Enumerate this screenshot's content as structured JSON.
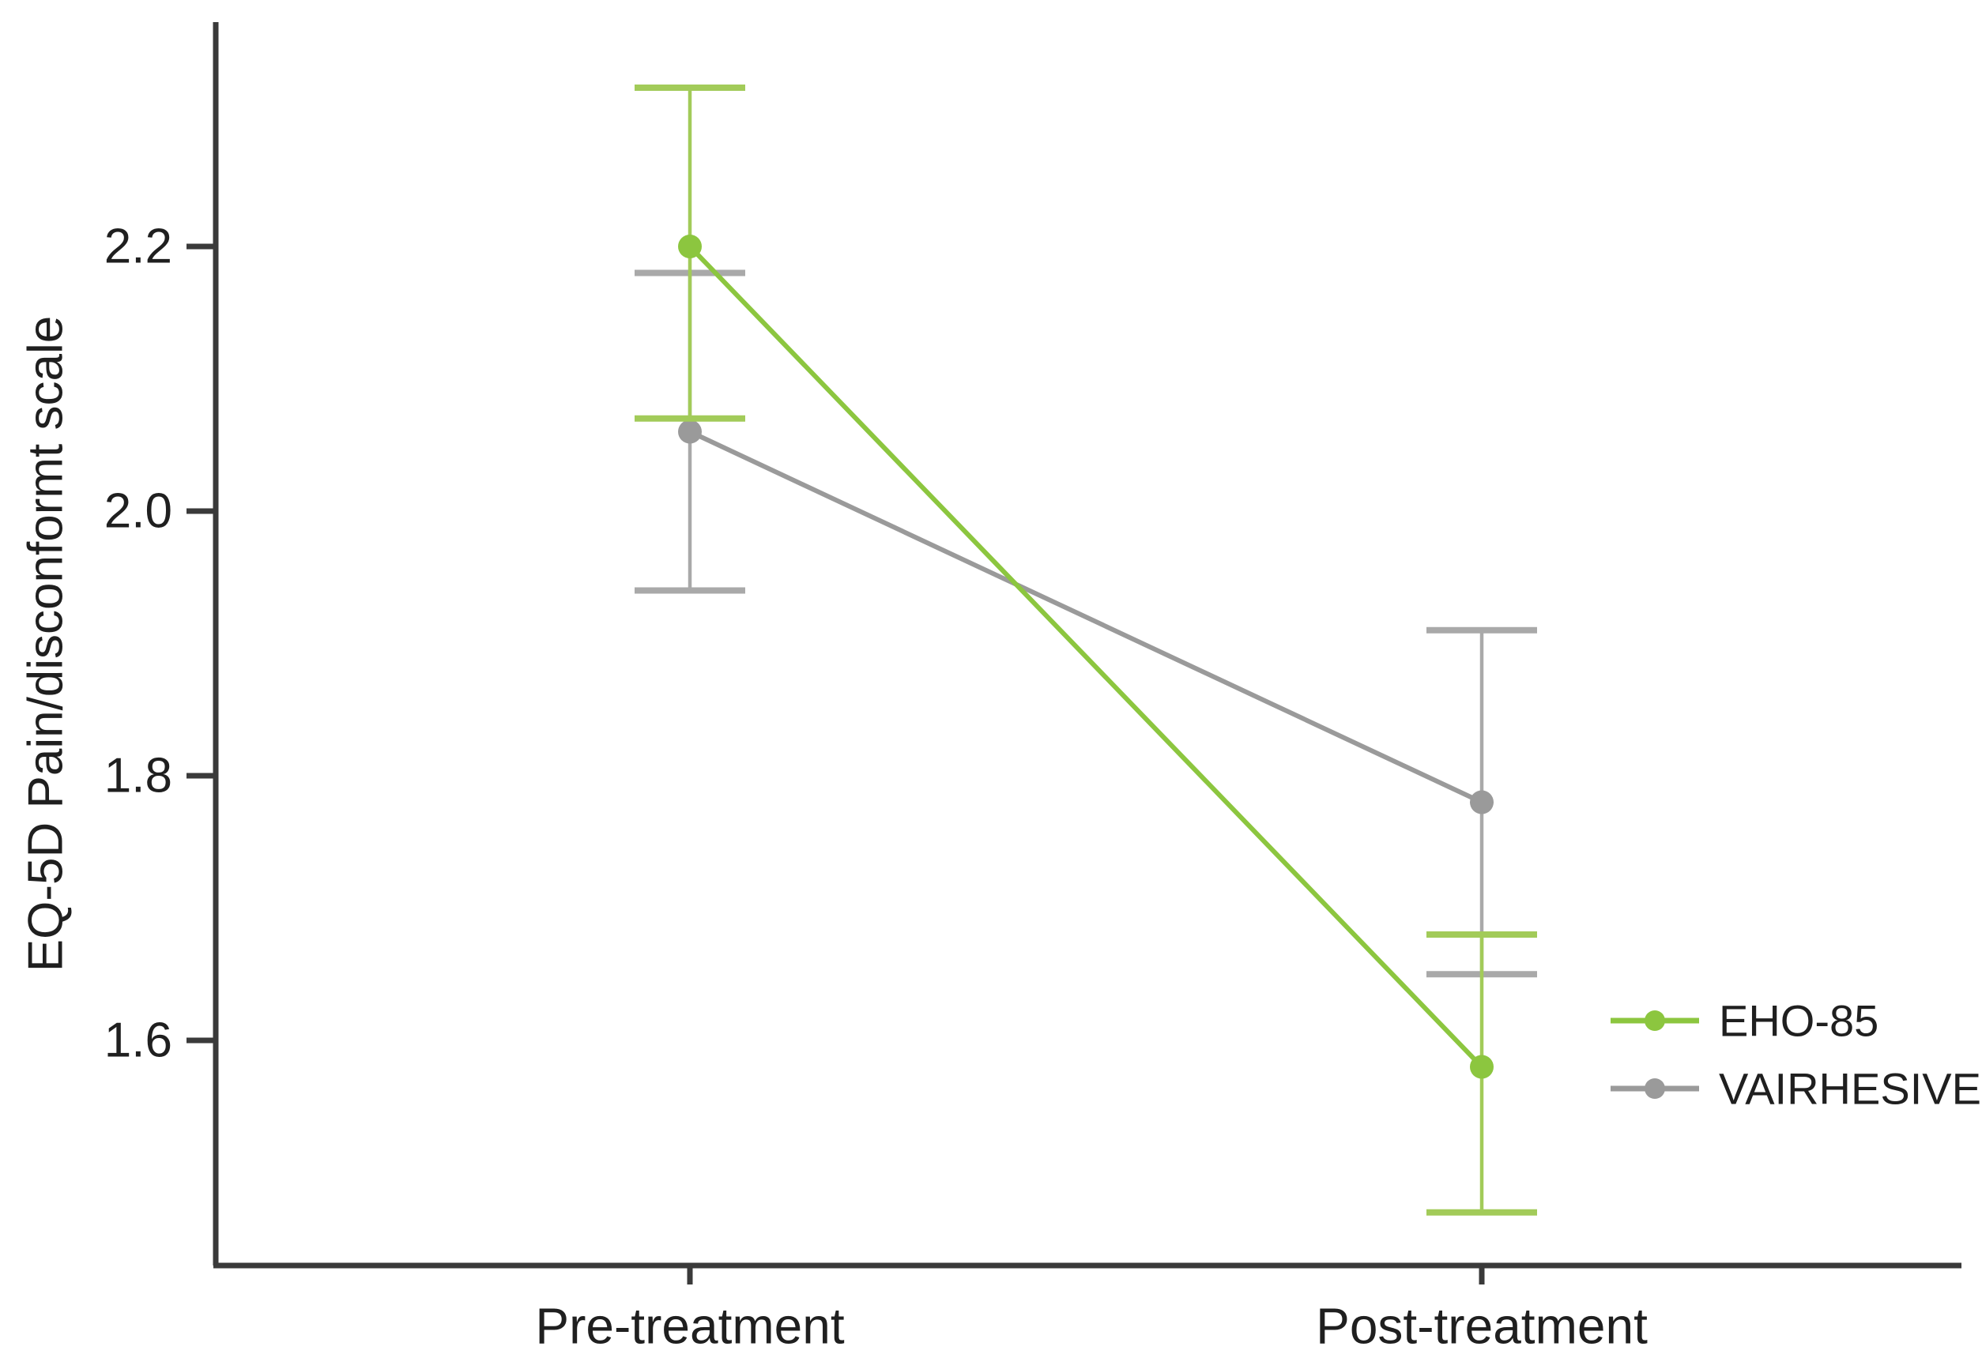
{
  "figure": {
    "background": "#ffffff",
    "axis_color": "#3a3a3a",
    "text_color": "#1f1f1f"
  },
  "chart_data": {
    "type": "line",
    "title": "",
    "xlabel": "",
    "ylabel": "EQ-5D Pain/disconformt scale",
    "categories": [
      "Pre-treatment",
      "Post-treatment"
    ],
    "yticks": [
      2.2,
      2.0,
      1.8,
      1.6
    ],
    "ylim": [
      1.42,
      2.38
    ],
    "grid": false,
    "legend_position": "right-middle",
    "error_bars": "95% CI",
    "series": [
      {
        "name": "EHO-85",
        "color": "#8cc63f",
        "error_color": "#a2cb59",
        "values": [
          2.2,
          1.58
        ],
        "ci_low": [
          2.07,
          1.47
        ],
        "ci_high": [
          2.32,
          1.68
        ]
      },
      {
        "name": "VAIRHESIVE",
        "color": "#9a9a9a",
        "error_color": "#a9a9a9",
        "values": [
          2.06,
          1.78
        ],
        "ci_low": [
          1.94,
          1.65
        ],
        "ci_high": [
          2.18,
          1.91
        ]
      }
    ]
  }
}
